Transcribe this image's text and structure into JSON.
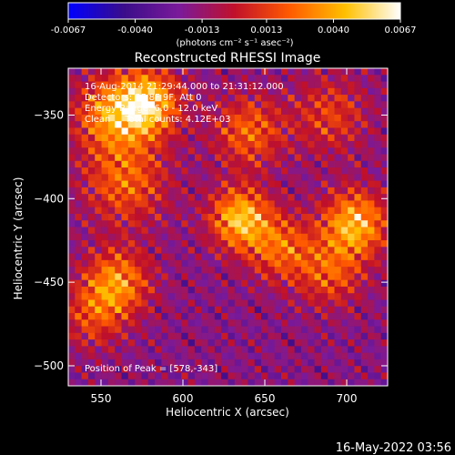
{
  "colorbar": {
    "tick_labels": [
      "-0.0067",
      "-0.0040",
      "-0.0013",
      "0.0013",
      "0.0040",
      "0.0067"
    ],
    "tick_values": [
      -0.0067,
      -0.004,
      -0.0013,
      0.0013,
      0.004,
      0.0067
    ],
    "range": [
      -0.0067,
      0.0067
    ],
    "units_label": "(photons cm⁻² s⁻¹ asec⁻²)",
    "colors": [
      "#0000ff",
      "#3a0d8a",
      "#7a1a9a",
      "#c0102a",
      "#ff5a00",
      "#ffc000",
      "#ffffff"
    ]
  },
  "chart_data": {
    "type": "heatmap",
    "title": "Reconstructed RHESSI Image",
    "xlabel": "Heliocentric X (arcsec)",
    "ylabel": "Heliocentric Y (arcsec)",
    "xlim": [
      530,
      725
    ],
    "ylim": [
      -512,
      -322
    ],
    "x_ticks": [
      550,
      600,
      650,
      700
    ],
    "x_tick_labels": [
      "550",
      "600",
      "650",
      "700"
    ],
    "y_ticks": [
      -350,
      -400,
      -450,
      -500
    ],
    "y_tick_labels": [
      "−350",
      "−400",
      "−450",
      "−500"
    ],
    "annotations": [
      "16-Aug-2014 21:29:44.000 to 21:31:12.000",
      "Detectors: 3F 8F 9F, Att 0",
      "Energy Range: 6.0 - 12.0 keV",
      "Clean     Total counts: 4.12E+03"
    ],
    "peak_label": "Position of Peak = [578,-343]",
    "sources": [
      {
        "x": 578,
        "y": -343,
        "amp": 0.0067,
        "sigma": 14
      },
      {
        "x": 555,
        "y": -350,
        "amp": 0.0045,
        "sigma": 16
      },
      {
        "x": 565,
        "y": -390,
        "amp": 0.004,
        "sigma": 18
      },
      {
        "x": 560,
        "y": -450,
        "amp": 0.005,
        "sigma": 14
      },
      {
        "x": 635,
        "y": -412,
        "amp": 0.0064,
        "sigma": 13
      },
      {
        "x": 705,
        "y": -415,
        "amp": 0.0062,
        "sigma": 14
      },
      {
        "x": 690,
        "y": -445,
        "amp": 0.0035,
        "sigma": 14
      },
      {
        "x": 640,
        "y": -360,
        "amp": 0.004,
        "sigma": 15
      },
      {
        "x": 690,
        "y": -350,
        "amp": 0.003,
        "sigma": 16
      },
      {
        "x": 660,
        "y": -430,
        "amp": 0.004,
        "sigma": 14
      },
      {
        "x": 545,
        "y": -470,
        "amp": 0.003,
        "sigma": 14
      }
    ]
  },
  "footer": {
    "timestamp": "16-May-2022 03:56"
  }
}
